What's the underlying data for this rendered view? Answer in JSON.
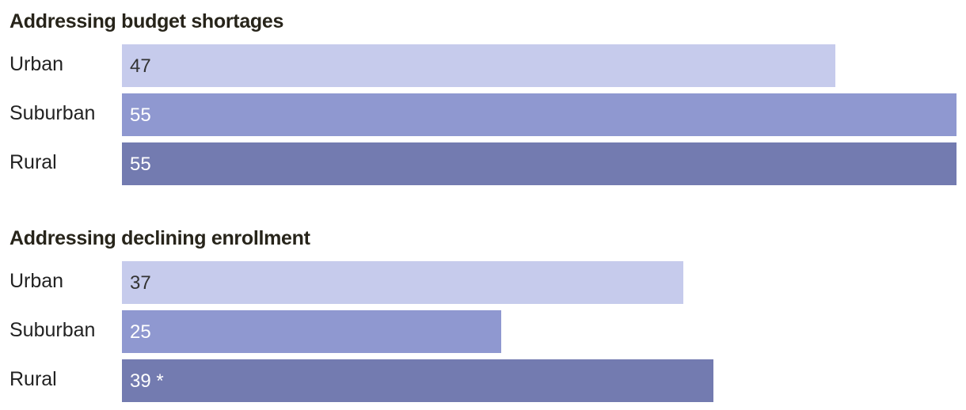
{
  "chart_data": [
    {
      "type": "bar",
      "orientation": "horizontal",
      "title": "Addressing budget shortages",
      "categories": [
        "Urban",
        "Suburban",
        "Rural"
      ],
      "values": [
        47,
        55,
        55
      ],
      "data_labels": [
        "47",
        "55",
        "55"
      ],
      "colors": [
        "#c6cbec",
        "#8f98d0",
        "#737bb0"
      ],
      "label_colors": [
        "#333333",
        "#ffffff",
        "#ffffff"
      ],
      "xlim": [
        0,
        55
      ],
      "grid": false,
      "legend": "none"
    },
    {
      "type": "bar",
      "orientation": "horizontal",
      "title": "Addressing declining enrollment",
      "categories": [
        "Urban",
        "Suburban",
        "Rural"
      ],
      "values": [
        37,
        25,
        39
      ],
      "data_labels": [
        "37",
        "25",
        "39 *"
      ],
      "colors": [
        "#c6cbec",
        "#8f98d0",
        "#737bb0"
      ],
      "label_colors": [
        "#333333",
        "#ffffff",
        "#ffffff"
      ],
      "xlim": [
        0,
        55
      ],
      "grid": false,
      "legend": "none"
    }
  ]
}
